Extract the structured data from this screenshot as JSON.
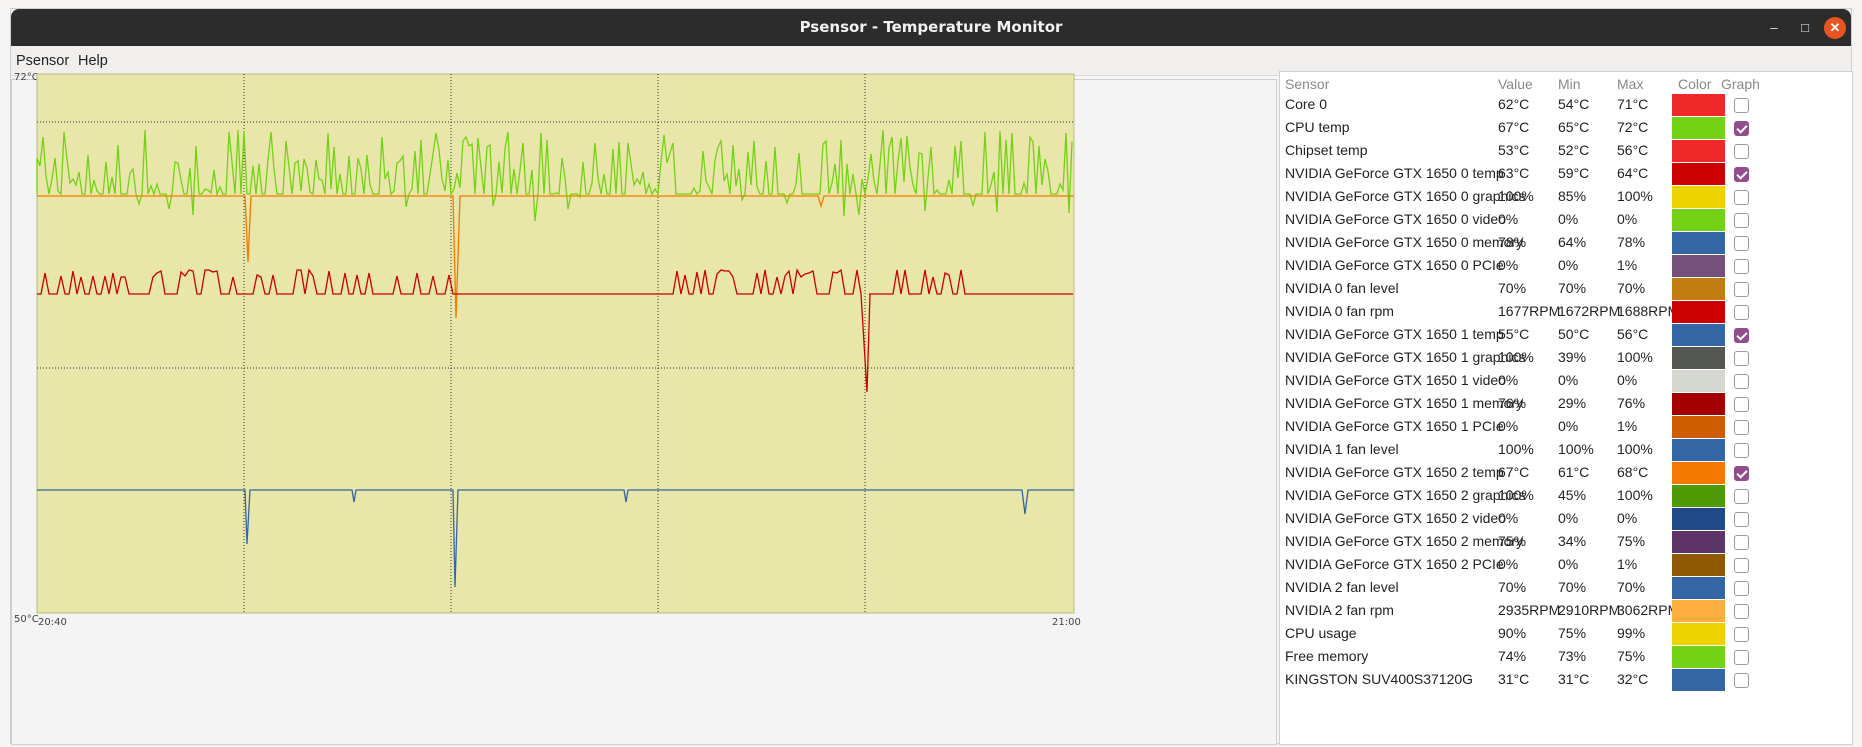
{
  "window": {
    "title": "Psensor - Temperature Monitor"
  },
  "menu": [
    "Psensor",
    "Help"
  ],
  "graph": {
    "y_max_label": "72°C",
    "y_min_label": "50°C",
    "x_start_label": "20:40",
    "x_end_label": "21:00",
    "background": "#e8e6a8"
  },
  "table": {
    "headers": [
      "Sensor",
      "Value",
      "Min",
      "Max",
      "Color",
      "Graph"
    ],
    "rows": [
      {
        "sensor": "Core 0",
        "value": "62°C",
        "min": "54°C",
        "max": "71°C",
        "color": "#ef2929",
        "graph": false
      },
      {
        "sensor": "CPU temp",
        "value": "67°C",
        "min": "65°C",
        "max": "72°C",
        "color": "#73d216",
        "graph": true
      },
      {
        "sensor": "Chipset temp",
        "value": "53°C",
        "min": "52°C",
        "max": "56°C",
        "color": "#ef2929",
        "graph": false
      },
      {
        "sensor": "NVIDIA GeForce GTX 1650 0 temp",
        "value": "63°C",
        "min": "59°C",
        "max": "64°C",
        "color": "#cc0000",
        "graph": true
      },
      {
        "sensor": "NVIDIA GeForce GTX 1650 0 graphics",
        "value": "100%",
        "min": "85%",
        "max": "100%",
        "color": "#edd400",
        "graph": false
      },
      {
        "sensor": "NVIDIA GeForce GTX 1650 0 video",
        "value": "0%",
        "min": "0%",
        "max": "0%",
        "color": "#73d216",
        "graph": false
      },
      {
        "sensor": "NVIDIA GeForce GTX 1650 0 memory",
        "value": "78%",
        "min": "64%",
        "max": "78%",
        "color": "#3465a4",
        "graph": false
      },
      {
        "sensor": "NVIDIA GeForce GTX 1650 0 PCIe",
        "value": "0%",
        "min": "0%",
        "max": "1%",
        "color": "#75507b",
        "graph": false
      },
      {
        "sensor": "NVIDIA 0 fan level",
        "value": "70%",
        "min": "70%",
        "max": "70%",
        "color": "#c17d11",
        "graph": false
      },
      {
        "sensor": "NVIDIA 0 fan rpm",
        "value": "1677RPM",
        "min": "1672RPM",
        "max": "1688RPM",
        "color": "#cc0000",
        "graph": false
      },
      {
        "sensor": "NVIDIA GeForce GTX 1650 1 temp",
        "value": "55°C",
        "min": "50°C",
        "max": "56°C",
        "color": "#3465a4",
        "graph": true
      },
      {
        "sensor": "NVIDIA GeForce GTX 1650 1 graphics",
        "value": "100%",
        "min": "39%",
        "max": "100%",
        "color": "#555753",
        "graph": false
      },
      {
        "sensor": "NVIDIA GeForce GTX 1650 1 video",
        "value": "0%",
        "min": "0%",
        "max": "0%",
        "color": "#d3d7cf",
        "graph": false
      },
      {
        "sensor": "NVIDIA GeForce GTX 1650 1 memory",
        "value": "76%",
        "min": "29%",
        "max": "76%",
        "color": "#a40000",
        "graph": false
      },
      {
        "sensor": "NVIDIA GeForce GTX 1650 1 PCIe",
        "value": "0%",
        "min": "0%",
        "max": "1%",
        "color": "#ce5c00",
        "graph": false
      },
      {
        "sensor": "NVIDIA 1 fan level",
        "value": "100%",
        "min": "100%",
        "max": "100%",
        "color": "#3465a4",
        "graph": false
      },
      {
        "sensor": "NVIDIA GeForce GTX 1650 2 temp",
        "value": "67°C",
        "min": "61°C",
        "max": "68°C",
        "color": "#f57900",
        "graph": true
      },
      {
        "sensor": "NVIDIA GeForce GTX 1650 2 graphics",
        "value": "100%",
        "min": "45%",
        "max": "100%",
        "color": "#4e9a06",
        "graph": false
      },
      {
        "sensor": "NVIDIA GeForce GTX 1650 2 video",
        "value": "0%",
        "min": "0%",
        "max": "0%",
        "color": "#204a87",
        "graph": false
      },
      {
        "sensor": "NVIDIA GeForce GTX 1650 2 memory",
        "value": "75%",
        "min": "34%",
        "max": "75%",
        "color": "#5c3566",
        "graph": false
      },
      {
        "sensor": "NVIDIA GeForce GTX 1650 2 PCIe",
        "value": "0%",
        "min": "0%",
        "max": "1%",
        "color": "#8f5902",
        "graph": false
      },
      {
        "sensor": "NVIDIA 2 fan level",
        "value": "70%",
        "min": "70%",
        "max": "70%",
        "color": "#3465a4",
        "graph": false
      },
      {
        "sensor": "NVIDIA 2 fan rpm",
        "value": "2935RPM",
        "min": "2910RPM",
        "max": "3062RPM",
        "color": "#fcaf3e",
        "graph": false
      },
      {
        "sensor": "CPU usage",
        "value": "90%",
        "min": "75%",
        "max": "99%",
        "color": "#edd400",
        "graph": false
      },
      {
        "sensor": "Free memory",
        "value": "74%",
        "min": "73%",
        "max": "75%",
        "color": "#73d216",
        "graph": false
      },
      {
        "sensor": "KINGSTON SUV400S37120G",
        "value": "31°C",
        "min": "31°C",
        "max": "32°C",
        "color": "#3465a4",
        "graph": false
      }
    ]
  }
}
